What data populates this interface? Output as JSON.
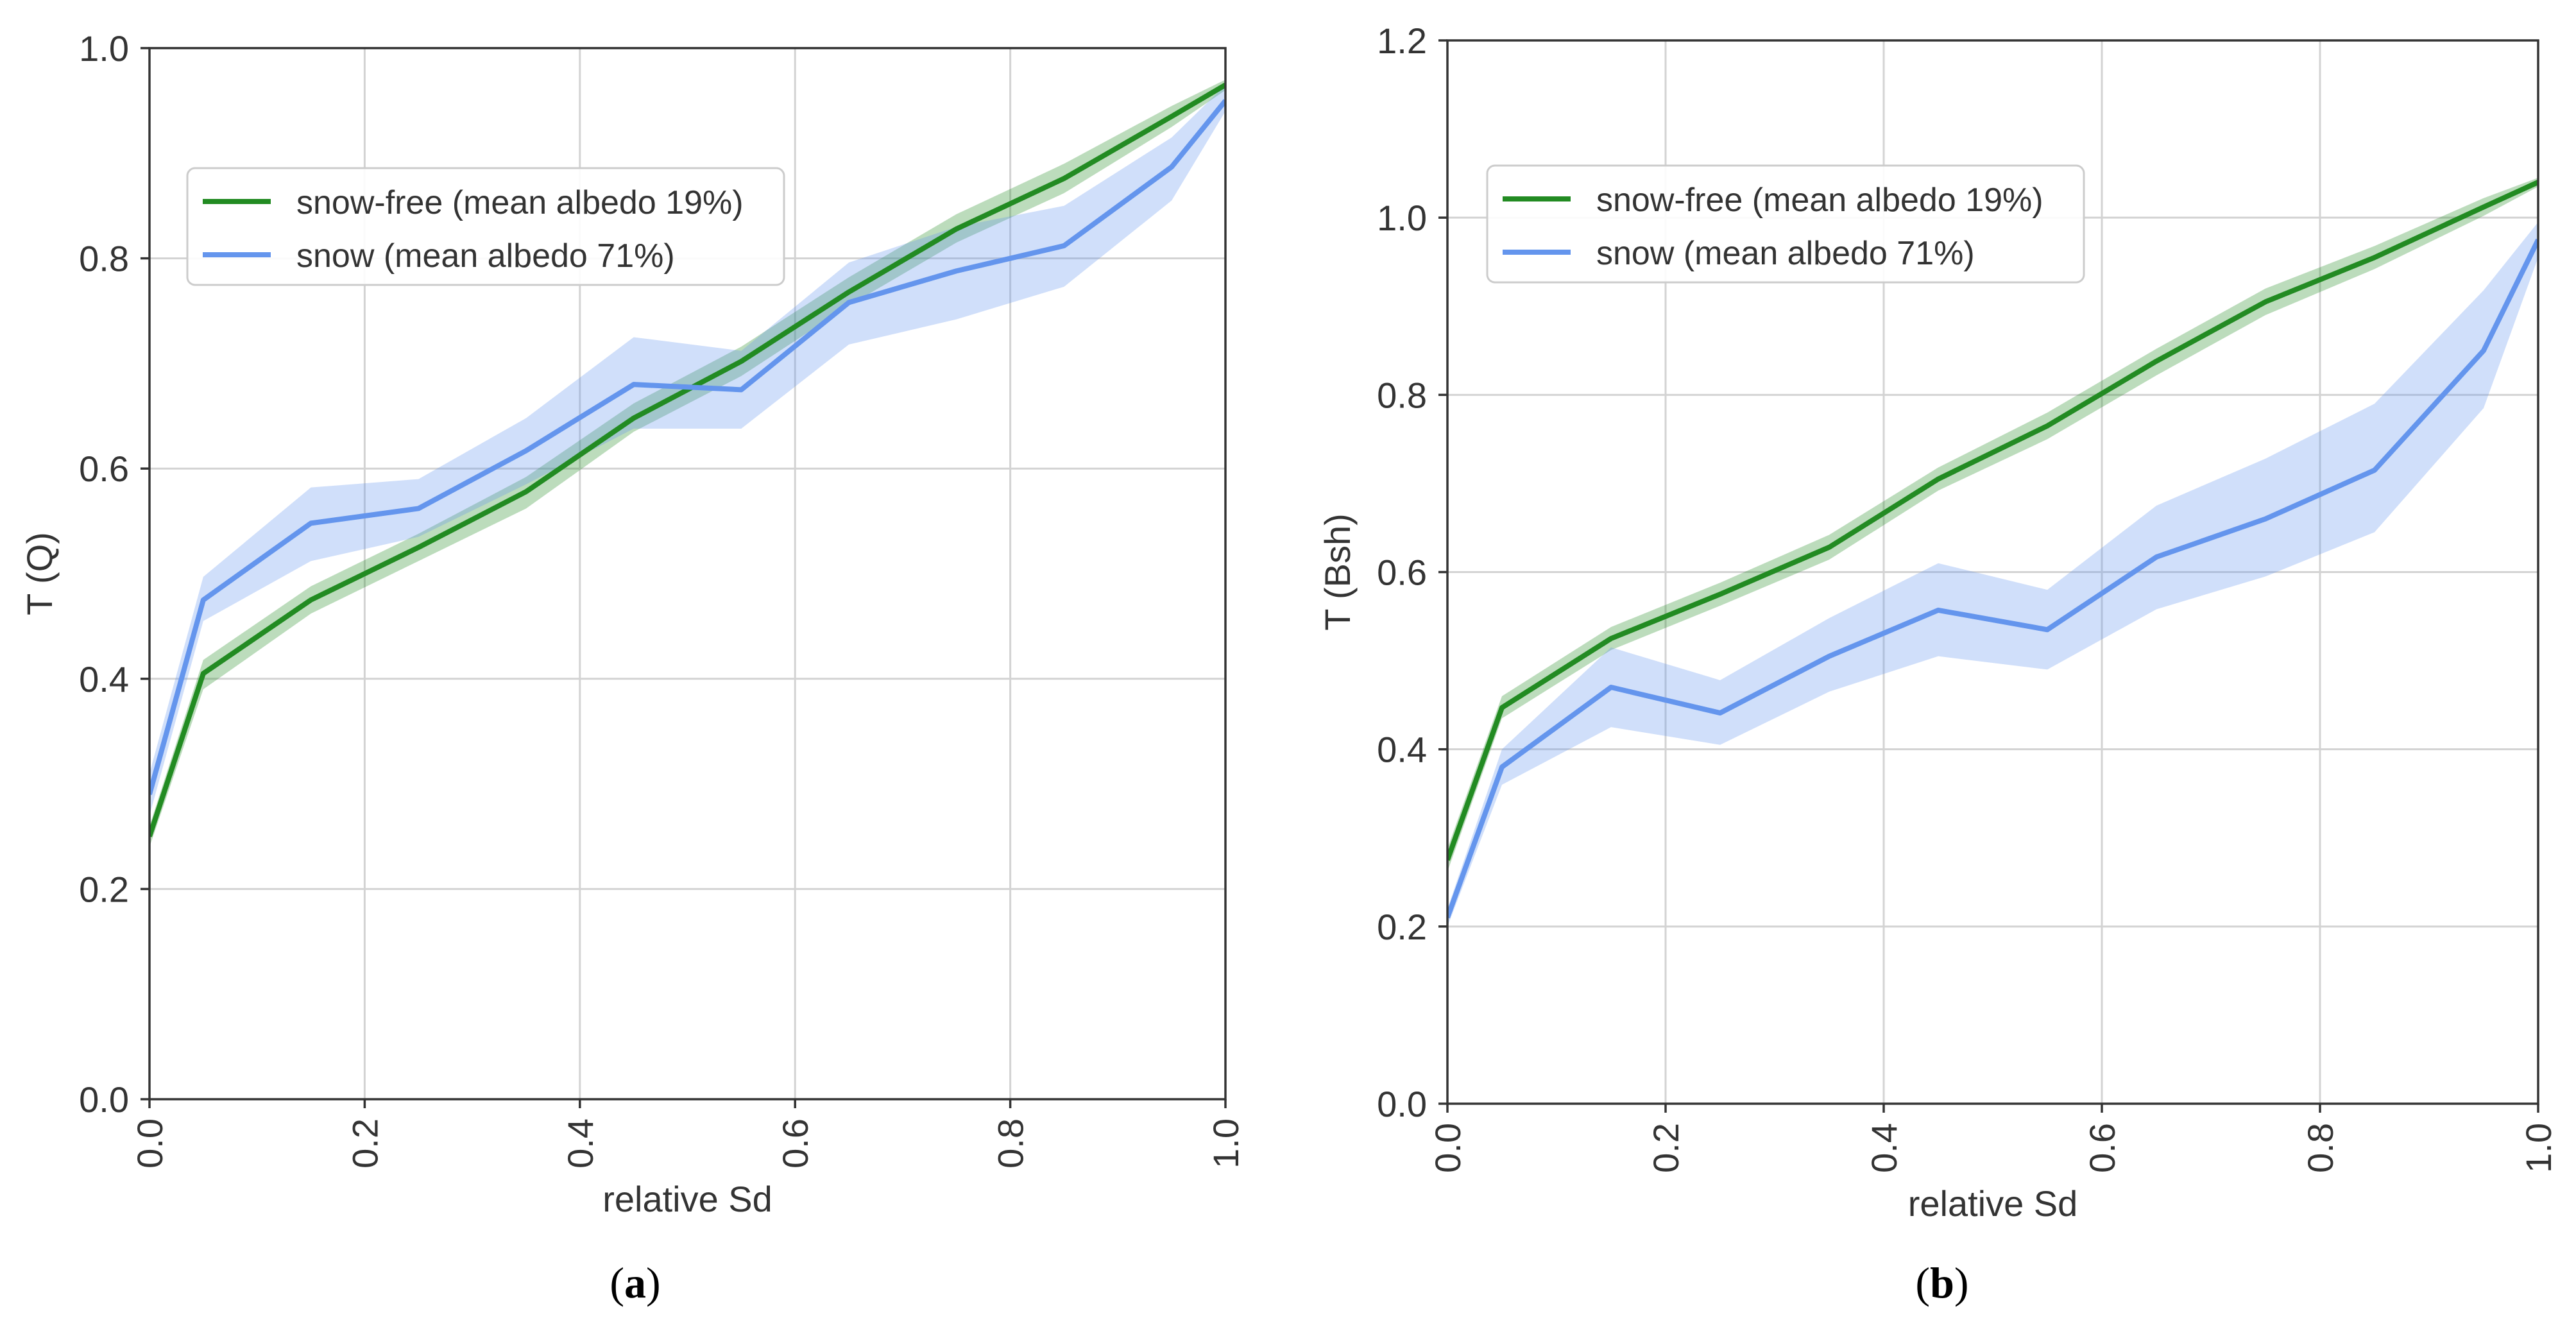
{
  "colors": {
    "snow_free": "#228b22",
    "snow": "#6495ed",
    "grid": "#d3d3d3",
    "axis": "#333333",
    "text": "#333333"
  },
  "captions": {
    "a": "a",
    "b": "b"
  },
  "chart_data": [
    {
      "id": "a",
      "type": "line",
      "title": "",
      "xlabel": "relative Sd",
      "ylabel": "T (Q)",
      "xlim": [
        0,
        1
      ],
      "ylim": [
        0,
        1
      ],
      "xticks": [
        0.0,
        0.2,
        0.4,
        0.6,
        0.8,
        1.0
      ],
      "yticks": [
        0.0,
        0.2,
        0.4,
        0.6,
        0.8,
        1.0
      ],
      "xtick_labels": [
        "0.0",
        "0.2",
        "0.4",
        "0.6",
        "0.8",
        "1.0"
      ],
      "ytick_labels": [
        "0.0",
        "0.2",
        "0.4",
        "0.6",
        "0.8",
        "1.0"
      ],
      "grid": true,
      "legend_position": "upper-left",
      "x": [
        0.0,
        0.05,
        0.15,
        0.25,
        0.35,
        0.45,
        0.55,
        0.65,
        0.75,
        0.85,
        0.95,
        1.0
      ],
      "series": [
        {
          "name": "snow-free (mean albedo 19%)",
          "color_key": "snow_free",
          "values": [
            0.25,
            0.405,
            0.475,
            0.525,
            0.578,
            0.648,
            0.702,
            0.768,
            0.828,
            0.876,
            0.935,
            0.965
          ],
          "lower": [
            0.24,
            0.39,
            0.462,
            0.512,
            0.562,
            0.635,
            0.688,
            0.755,
            0.815,
            0.862,
            0.925,
            0.96
          ],
          "upper": [
            0.26,
            0.418,
            0.488,
            0.538,
            0.592,
            0.662,
            0.716,
            0.782,
            0.842,
            0.89,
            0.945,
            0.97
          ]
        },
        {
          "name": "snow (mean albedo 71%)",
          "color_key": "snow",
          "values": [
            0.29,
            0.475,
            0.548,
            0.562,
            0.617,
            0.68,
            0.675,
            0.758,
            0.788,
            0.812,
            0.887,
            0.95
          ],
          "lower": [
            0.27,
            0.455,
            0.512,
            0.535,
            0.585,
            0.638,
            0.638,
            0.718,
            0.742,
            0.773,
            0.855,
            0.94
          ],
          "upper": [
            0.31,
            0.497,
            0.582,
            0.59,
            0.648,
            0.725,
            0.712,
            0.796,
            0.83,
            0.85,
            0.915,
            0.965
          ]
        }
      ]
    },
    {
      "id": "b",
      "type": "line",
      "title": "",
      "xlabel": "relative Sd",
      "ylabel": "T (Bsh)",
      "xlim": [
        0,
        1
      ],
      "ylim": [
        0,
        1.2
      ],
      "xticks": [
        0.0,
        0.2,
        0.4,
        0.6,
        0.8,
        1.0
      ],
      "yticks": [
        0.0,
        0.2,
        0.4,
        0.6,
        0.8,
        1.0,
        1.2
      ],
      "xtick_labels": [
        "0.0",
        "0.2",
        "0.4",
        "0.6",
        "0.8",
        "1.0"
      ],
      "ytick_labels": [
        "0.0",
        "0.2",
        "0.4",
        "0.6",
        "0.8",
        "1.0",
        "1.2"
      ],
      "grid": true,
      "legend_position": "upper-left",
      "x": [
        0.0,
        0.05,
        0.15,
        0.25,
        0.35,
        0.45,
        0.55,
        0.65,
        0.75,
        0.85,
        0.95,
        1.0
      ],
      "series": [
        {
          "name": "snow-free (mean albedo 19%)",
          "color_key": "snow_free",
          "values": [
            0.275,
            0.447,
            0.525,
            0.575,
            0.628,
            0.705,
            0.765,
            0.838,
            0.905,
            0.955,
            1.012,
            1.04
          ],
          "lower": [
            0.262,
            0.435,
            0.512,
            0.562,
            0.614,
            0.692,
            0.75,
            0.822,
            0.89,
            0.942,
            1.002,
            1.035
          ],
          "upper": [
            0.288,
            0.46,
            0.538,
            0.588,
            0.642,
            0.718,
            0.78,
            0.852,
            0.92,
            0.968,
            1.022,
            1.045
          ]
        },
        {
          "name": "snow (mean albedo 71%)",
          "color_key": "snow",
          "values": [
            0.21,
            0.38,
            0.47,
            0.441,
            0.505,
            0.557,
            0.535,
            0.617,
            0.66,
            0.715,
            0.85,
            0.975
          ],
          "lower": [
            0.2,
            0.36,
            0.425,
            0.405,
            0.465,
            0.505,
            0.49,
            0.558,
            0.595,
            0.645,
            0.785,
            0.955
          ],
          "upper": [
            0.22,
            0.4,
            0.515,
            0.478,
            0.548,
            0.61,
            0.58,
            0.675,
            0.728,
            0.79,
            0.918,
            0.995
          ]
        }
      ]
    }
  ]
}
